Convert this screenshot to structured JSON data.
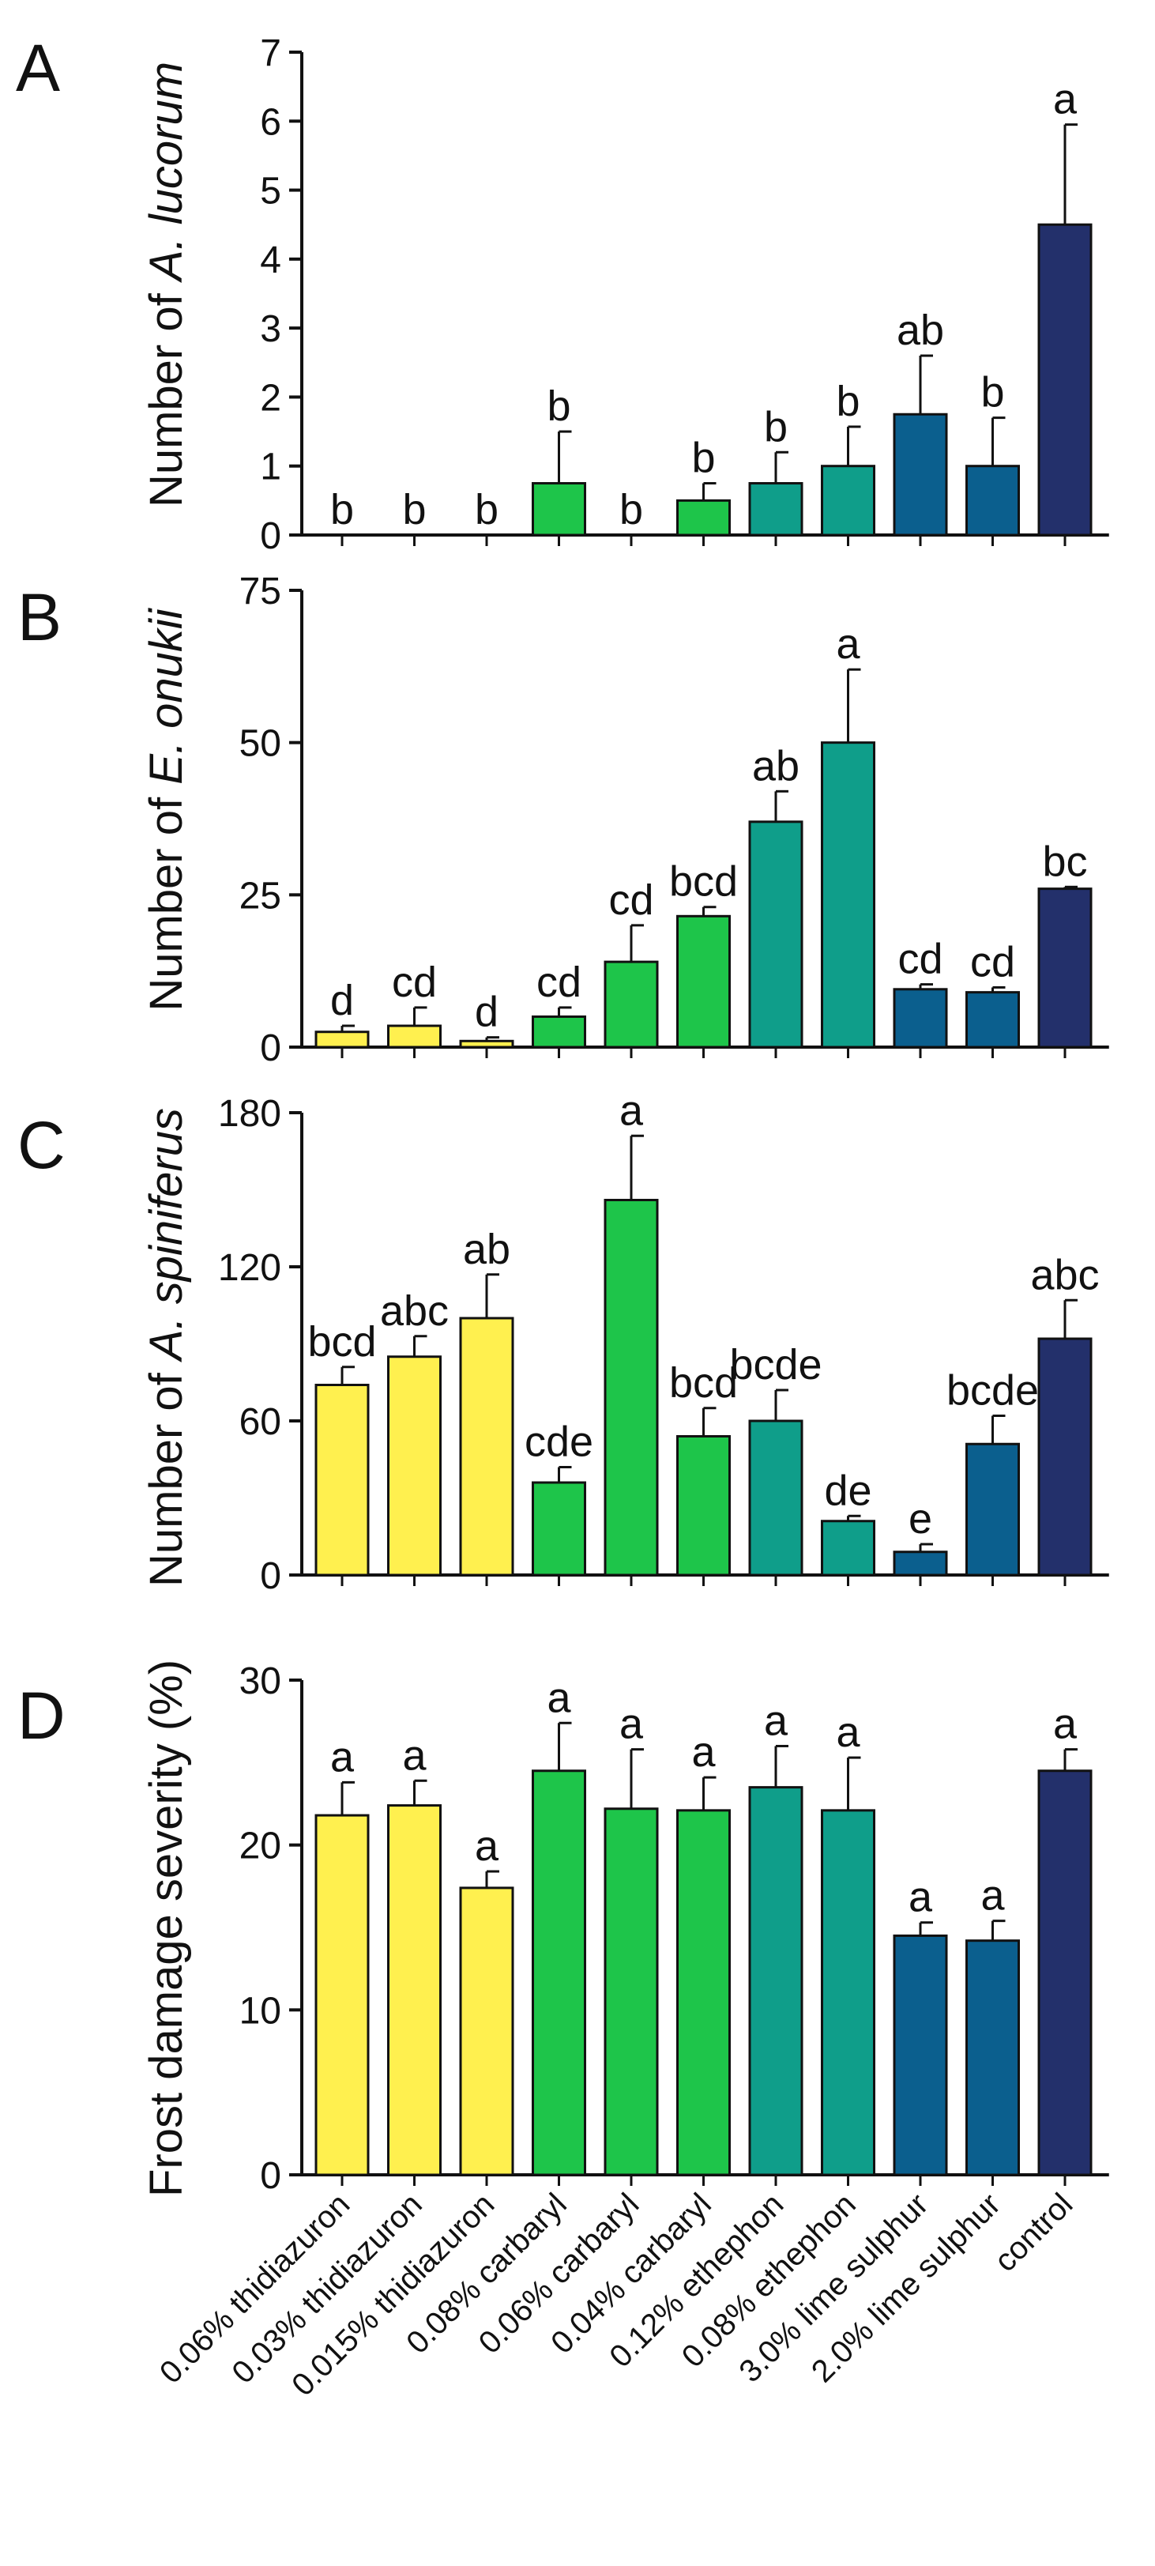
{
  "chart_data": [
    {
      "type": "bar",
      "panel": "A",
      "ylabel_prefix": "Number of ",
      "ylabel_species": "A. lucorum",
      "ylim": [
        0,
        7
      ],
      "yticks": [
        "0",
        "1",
        "2",
        "3",
        "4",
        "5",
        "6",
        "7"
      ],
      "values": [
        0,
        0,
        0,
        0.75,
        0,
        0.5,
        0.75,
        1.0,
        1.75,
        1.0,
        4.5
      ],
      "errors": [
        0,
        0,
        0,
        0.75,
        0,
        0.25,
        0.45,
        0.57,
        0.85,
        0.7,
        1.45
      ],
      "letters": [
        "b",
        "b",
        "b",
        "b",
        "b",
        "b",
        "b",
        "b",
        "ab",
        "b",
        "a"
      ]
    },
    {
      "type": "bar",
      "panel": "B",
      "ylabel_prefix": "Number of ",
      "ylabel_species": "E. onukii",
      "ylim": [
        0,
        75
      ],
      "yticks": [
        "0",
        "25",
        "50",
        "75"
      ],
      "values": [
        2.5,
        3.5,
        1.0,
        5.0,
        14.0,
        21.5,
        37.0,
        50.0,
        9.5,
        9.0,
        26.0
      ],
      "errors": [
        1.0,
        3.0,
        0.6,
        1.5,
        6.0,
        1.5,
        5.0,
        12.0,
        0.8,
        0.8,
        0.3
      ],
      "letters": [
        "d",
        "cd",
        "d",
        "cd",
        "cd",
        "bcd",
        "ab",
        "a",
        "cd",
        "cd",
        "bc"
      ]
    },
    {
      "type": "bar",
      "panel": "C",
      "ylabel_prefix": "Number of ",
      "ylabel_species": "A. spiniferus",
      "ylim": [
        0,
        180
      ],
      "yticks": [
        "0",
        "60",
        "120",
        "180"
      ],
      "values": [
        74,
        85,
        100,
        36,
        146,
        54,
        60,
        21,
        9,
        51,
        92
      ],
      "errors": [
        7,
        8,
        17,
        6,
        25,
        11,
        12,
        2,
        3,
        11,
        15
      ],
      "letters": [
        "bcd",
        "abc",
        "ab",
        "cde",
        "a",
        "bcd",
        "bcde",
        "de",
        "e",
        "bcde",
        "abc"
      ]
    },
    {
      "type": "bar",
      "panel": "D",
      "ylabel_prefix": "Frost damage severity (%)",
      "ylabel_species": "",
      "ylim": [
        0,
        30
      ],
      "yticks": [
        "0",
        "10",
        "20",
        "30"
      ],
      "values": [
        21.8,
        22.4,
        17.4,
        24.5,
        22.2,
        22.1,
        23.5,
        22.1,
        14.5,
        14.2,
        24.5
      ],
      "errors": [
        2.0,
        1.5,
        1.0,
        2.9,
        3.6,
        2.0,
        2.5,
        3.2,
        0.8,
        1.2,
        1.3
      ],
      "letters": [
        "a",
        "a",
        "a",
        "a",
        "a",
        "a",
        "a",
        "a",
        "a",
        "a",
        "a"
      ]
    }
  ],
  "categories": [
    "0.06% thidiazuron",
    "0.03% thidiazuron",
    "0.015% thidiazuron",
    "0.08% carbaryl",
    "0.06% carbaryl",
    "0.04% carbaryl",
    "0.12% ethephon",
    "0.08% ethephon",
    "3.0% lime sulphur",
    "2.0% lime sulphur",
    "control"
  ],
  "colors": [
    "#fff04f",
    "#fff04f",
    "#fff04f",
    "#1ec54a",
    "#1ec54a",
    "#1ec54a",
    "#0f9e8a",
    "#0f9e8a",
    "#0b5f8e",
    "#0b5f8e",
    "#23306b"
  ]
}
